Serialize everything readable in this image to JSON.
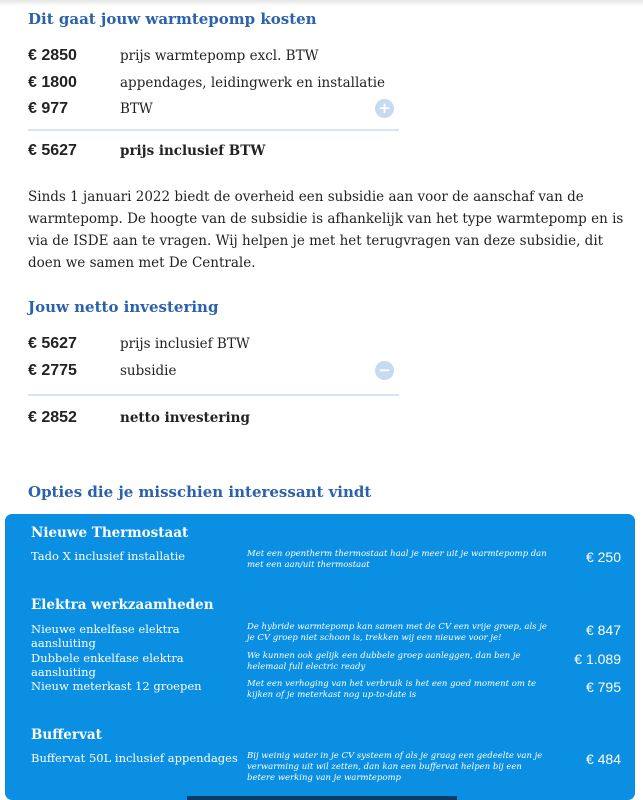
{
  "costs": {
    "title": "Dit gaat jouw warmtepomp kosten",
    "rows": [
      {
        "amount": "€  2850",
        "label": "prijs warmtepomp excl. BTW"
      },
      {
        "amount": "€  1800",
        "label": "appendages, leidingwerk en installatie"
      },
      {
        "amount": "€  977",
        "label": "BTW"
      }
    ],
    "total": {
      "amount": "€  5627",
      "label": "prijs inclusief BTW"
    },
    "toggle_icon": "plus-circle-icon",
    "toggle": "+"
  },
  "subsidy_text": "Sinds 1 januari 2022 biedt de overheid een subsidie aan voor de aanschaf van de warmtepomp. De hoogte van de subsidie is afhankelijk van het type warmtepomp en is via de ISDE aan te vragen. Wij helpen je met het terugvragen van deze subsidie, dit doen we samen met De Centrale.",
  "net": {
    "title": "Jouw netto investering",
    "rows": [
      {
        "amount": "€  5627",
        "label": "prijs inclusief BTW"
      },
      {
        "amount": "€  2775",
        "label": "subsidie"
      }
    ],
    "total": {
      "amount": "€  2852",
      "label": "netto investering"
    },
    "toggle_icon": "minus-circle-icon",
    "toggle": "−"
  },
  "options": {
    "title": "Opties die je misschien interessant vindt",
    "panel_color": "#0b8fe2",
    "groups": [
      {
        "title": "Nieuwe Thermostaat",
        "items": [
          {
            "name": "Tado X  inclusief installatie",
            "desc": "Met een opentherm thermostaat haal je meer uit je warmtepomp dan met een aan/uit thermostaat",
            "price": "€ 250"
          }
        ]
      },
      {
        "title": "Elektra werkzaamheden",
        "items": [
          {
            "name": "Nieuwe enkelfase elektra aansluiting",
            "desc": "De hybride warmtepomp kan samen met de CV een vrije groep, als je je CV groep niet schoon is,  trekken wij een nieuwe voor je!",
            "price": "€ 847"
          },
          {
            "name": "Dubbele enkelfase elektra aansluiting",
            "desc": "We kunnen ook gelijk een dubbele groep aanleggen, dan ben je helemaal full electric ready",
            "price": "€ 1.089"
          },
          {
            "name": "Nieuw meterkast 12 groepen",
            "desc": "Met een verhoging van het verbruik is het een goed moment om te kijken of je meterkast nog up-to-date is",
            "price": "€ 795"
          }
        ]
      },
      {
        "title": "Buffervat",
        "items": [
          {
            "name": "Buffervat 50L  inclusief appendages",
            "desc": "Bij weinig water in je CV systeem of als je graag een gedeelte van je verwarming uit wil zetten, dan kan een buffervat helpen bij een betere werking van je warmtepomp",
            "price": "€ 484"
          }
        ]
      }
    ]
  }
}
